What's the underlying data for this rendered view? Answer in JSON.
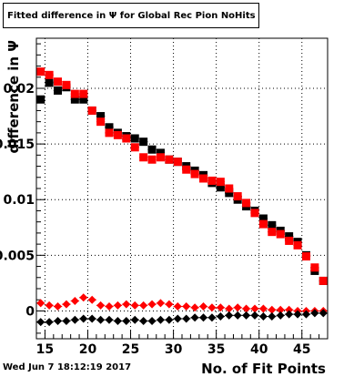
{
  "chart_data": {
    "type": "scatter",
    "title": "Fitted difference in Ψ  for Global Rec Pion NoHits",
    "xlabel": "No. of Fit Points",
    "ylabel": "difference in  Ψ",
    "xlim": [
      14,
      48
    ],
    "ylim": [
      -0.0025,
      0.0245
    ],
    "xticks": [
      15,
      20,
      25,
      30,
      35,
      40,
      45
    ],
    "yticks": [
      0,
      0.005,
      0.01,
      0.015,
      0.02
    ],
    "ytick_labels": [
      "0",
      "0.005",
      "0.01",
      "0.015",
      "0.02"
    ],
    "grid": true,
    "series": [
      {
        "name": "",
        "color": "#000000",
        "marker": "square",
        "x": [
          14.5,
          15.5,
          16.5,
          17.5,
          18.5,
          19.5,
          20.5,
          21.5,
          22.5,
          23.5,
          24.5,
          25.5,
          26.5,
          27.5,
          28.5,
          29.5,
          30.5,
          31.5,
          32.5,
          33.5,
          34.5,
          35.5,
          36.5,
          37.5,
          38.5,
          39.5,
          40.5,
          41.5,
          42.5,
          43.5,
          44.5,
          45.5,
          46.5,
          47.5
        ],
        "y": [
          0.019,
          0.0205,
          0.0198,
          0.0201,
          0.019,
          0.019,
          0.018,
          0.0175,
          0.0165,
          0.016,
          0.0157,
          0.0155,
          0.0152,
          0.0145,
          0.0142,
          0.0136,
          0.0134,
          0.013,
          0.0126,
          0.0122,
          0.0115,
          0.0111,
          0.0106,
          0.01,
          0.0094,
          0.009,
          0.0083,
          0.0077,
          0.0072,
          0.0067,
          0.0062,
          0.005,
          0.0036,
          0.0027
        ]
      },
      {
        "name": "",
        "color": "#ff0000",
        "marker": "square",
        "x": [
          14.5,
          15.5,
          16.5,
          17.5,
          18.5,
          19.5,
          20.5,
          21.5,
          22.5,
          23.5,
          24.5,
          25.5,
          26.5,
          27.5,
          28.5,
          29.5,
          30.5,
          31.5,
          32.5,
          33.5,
          34.5,
          35.5,
          36.5,
          37.5,
          38.5,
          39.5,
          40.5,
          41.5,
          42.5,
          43.5,
          44.5,
          45.5,
          46.5,
          47.5
        ],
        "y": [
          0.0215,
          0.0212,
          0.0206,
          0.0203,
          0.0195,
          0.0195,
          0.018,
          0.017,
          0.016,
          0.0158,
          0.0155,
          0.0147,
          0.0138,
          0.0136,
          0.0138,
          0.0136,
          0.0134,
          0.0127,
          0.0123,
          0.0119,
          0.0117,
          0.0116,
          0.011,
          0.0103,
          0.0097,
          0.0088,
          0.0078,
          0.0071,
          0.0069,
          0.0063,
          0.0059,
          0.0049,
          0.0039,
          0.0027
        ]
      },
      {
        "name": "",
        "color": "#ff0000",
        "marker": "diamond",
        "x": [
          14.5,
          15.5,
          16.5,
          17.5,
          18.5,
          19.5,
          20.5,
          21.5,
          22.5,
          23.5,
          24.5,
          25.5,
          26.5,
          27.5,
          28.5,
          29.5,
          30.5,
          31.5,
          32.5,
          33.5,
          34.5,
          35.5,
          36.5,
          37.5,
          38.5,
          39.5,
          40.5,
          41.5,
          42.5,
          43.5,
          44.5,
          45.5,
          46.5,
          47.5
        ],
        "y": [
          0.0007,
          0.0005,
          0.0004,
          0.0006,
          0.0009,
          0.0012,
          0.001,
          0.0005,
          0.0004,
          0.0005,
          0.0006,
          0.0005,
          0.0005,
          0.0006,
          0.0007,
          0.0006,
          0.0004,
          0.0004,
          0.0003,
          0.0004,
          0.0003,
          0.0003,
          0.0002,
          0.0003,
          0.0002,
          0.0002,
          0.0002,
          0.0001,
          0.0001,
          0.0001,
          0.0,
          0.0,
          0.0,
          0.0
        ]
      },
      {
        "name": "",
        "color": "#000000",
        "marker": "diamond",
        "x": [
          14.5,
          15.5,
          16.5,
          17.5,
          18.5,
          19.5,
          20.5,
          21.5,
          22.5,
          23.5,
          24.5,
          25.5,
          26.5,
          27.5,
          28.5,
          29.5,
          30.5,
          31.5,
          32.5,
          33.5,
          34.5,
          35.5,
          36.5,
          37.5,
          38.5,
          39.5,
          40.5,
          41.5,
          42.5,
          43.5,
          44.5,
          45.5,
          46.5,
          47.5
        ],
        "y": [
          -0.001,
          -0.001,
          -0.0009,
          -0.0009,
          -0.0008,
          -0.0007,
          -0.0007,
          -0.0008,
          -0.0008,
          -0.0009,
          -0.0009,
          -0.0008,
          -0.0009,
          -0.0009,
          -0.0008,
          -0.0008,
          -0.0007,
          -0.0007,
          -0.0006,
          -0.0006,
          -0.0006,
          -0.0005,
          -0.0004,
          -0.0004,
          -0.0004,
          -0.0004,
          -0.0005,
          -0.0005,
          -0.0004,
          -0.0003,
          -0.0003,
          -0.0003,
          -0.0002,
          -0.0002
        ]
      }
    ]
  },
  "footer": {
    "timestamp": "Wed Jun  7 18:12:19 2017"
  }
}
